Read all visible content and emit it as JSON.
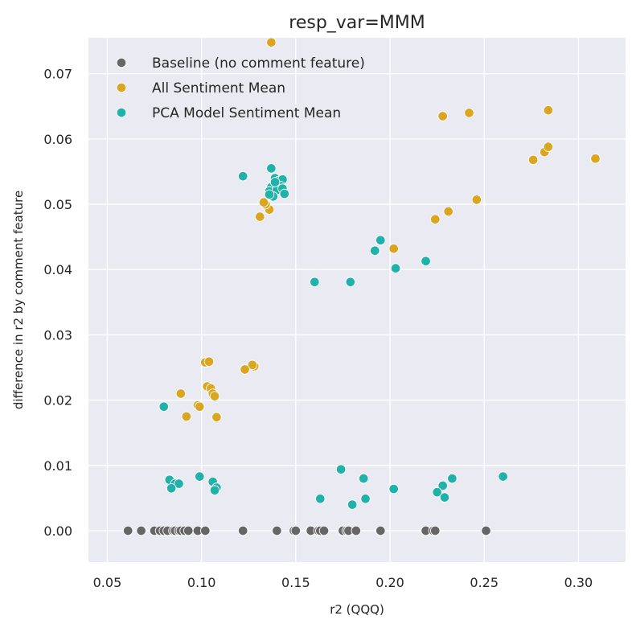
{
  "chart_data": {
    "type": "scatter",
    "title": "resp_var=MMM",
    "xlabel": "r2 (QQQ)",
    "ylabel": "difference in r2 by comment feature",
    "xlim": [
      0.04,
      0.325
    ],
    "ylim": [
      -0.0048,
      0.0755
    ],
    "xticks": [
      "0.05",
      "0.10",
      "0.15",
      "0.20",
      "0.25",
      "0.30"
    ],
    "yticks": [
      "0.00",
      "0.01",
      "0.02",
      "0.03",
      "0.04",
      "0.05",
      "0.06",
      "0.07"
    ],
    "grid": true,
    "legend_position": "top-left",
    "background_color": "#eaeaf2",
    "series": [
      {
        "name": "Baseline (no comment feature)",
        "color": "#666666",
        "points": [
          [
            0.061,
            0
          ],
          [
            0.068,
            0
          ],
          [
            0.075,
            0
          ],
          [
            0.078,
            0
          ],
          [
            0.08,
            0
          ],
          [
            0.082,
            0
          ],
          [
            0.085,
            0
          ],
          [
            0.086,
            0
          ],
          [
            0.088,
            0
          ],
          [
            0.089,
            0
          ],
          [
            0.091,
            0
          ],
          [
            0.093,
            0
          ],
          [
            0.098,
            0
          ],
          [
            0.102,
            0
          ],
          [
            0.122,
            0
          ],
          [
            0.14,
            0
          ],
          [
            0.149,
            0
          ],
          [
            0.15,
            0
          ],
          [
            0.158,
            0
          ],
          [
            0.162,
            0
          ],
          [
            0.163,
            0
          ],
          [
            0.165,
            0
          ],
          [
            0.175,
            0
          ],
          [
            0.177,
            0
          ],
          [
            0.178,
            0
          ],
          [
            0.182,
            0
          ],
          [
            0.195,
            0
          ],
          [
            0.219,
            0
          ],
          [
            0.223,
            0
          ],
          [
            0.224,
            0
          ],
          [
            0.251,
            0
          ]
        ]
      },
      {
        "name": "All Sentiment Mean",
        "color": "#daa520",
        "points": [
          [
            0.137,
            0.0748
          ],
          [
            0.228,
            0.0635
          ],
          [
            0.242,
            0.064
          ],
          [
            0.284,
            0.0644
          ],
          [
            0.276,
            0.0568
          ],
          [
            0.282,
            0.058
          ],
          [
            0.284,
            0.0588
          ],
          [
            0.309,
            0.057
          ],
          [
            0.246,
            0.0507
          ],
          [
            0.231,
            0.0489
          ],
          [
            0.224,
            0.0477
          ],
          [
            0.202,
            0.0432
          ],
          [
            0.131,
            0.0481
          ],
          [
            0.136,
            0.0492
          ],
          [
            0.134,
            0.05
          ],
          [
            0.133,
            0.0503
          ],
          [
            0.139,
            0.052
          ],
          [
            0.128,
            0.0252
          ],
          [
            0.127,
            0.0254
          ],
          [
            0.123,
            0.0247
          ],
          [
            0.102,
            0.0258
          ],
          [
            0.104,
            0.0259
          ],
          [
            0.103,
            0.0221
          ],
          [
            0.105,
            0.0218
          ],
          [
            0.106,
            0.021
          ],
          [
            0.107,
            0.0206
          ],
          [
            0.089,
            0.021
          ],
          [
            0.098,
            0.0192
          ],
          [
            0.099,
            0.019
          ],
          [
            0.092,
            0.0175
          ],
          [
            0.108,
            0.0174
          ]
        ]
      },
      {
        "name": "PCA Model Sentiment Mean",
        "color": "#20b2aa",
        "points": [
          [
            0.137,
            0.0555
          ],
          [
            0.122,
            0.0543
          ],
          [
            0.139,
            0.054
          ],
          [
            0.141,
            0.0536
          ],
          [
            0.143,
            0.0538
          ],
          [
            0.139,
            0.0532
          ],
          [
            0.142,
            0.0528
          ],
          [
            0.137,
            0.0526
          ],
          [
            0.136,
            0.052
          ],
          [
            0.14,
            0.0522
          ],
          [
            0.143,
            0.0524
          ],
          [
            0.138,
            0.0512
          ],
          [
            0.144,
            0.0516
          ],
          [
            0.136,
            0.0515
          ],
          [
            0.139,
            0.0534
          ],
          [
            0.195,
            0.0445
          ],
          [
            0.192,
            0.0429
          ],
          [
            0.219,
            0.0413
          ],
          [
            0.203,
            0.0402
          ],
          [
            0.16,
            0.0381
          ],
          [
            0.179,
            0.0381
          ],
          [
            0.08,
            0.019
          ],
          [
            0.083,
            0.0078
          ],
          [
            0.086,
            0.0072
          ],
          [
            0.088,
            0.0072
          ],
          [
            0.084,
            0.0065
          ],
          [
            0.099,
            0.0083
          ],
          [
            0.106,
            0.0075
          ],
          [
            0.108,
            0.0066
          ],
          [
            0.107,
            0.0062
          ],
          [
            0.174,
            0.0094
          ],
          [
            0.186,
            0.008
          ],
          [
            0.233,
            0.008
          ],
          [
            0.26,
            0.0083
          ],
          [
            0.228,
            0.0069
          ],
          [
            0.202,
            0.0064
          ],
          [
            0.225,
            0.0059
          ],
          [
            0.163,
            0.0049
          ],
          [
            0.187,
            0.0049
          ],
          [
            0.229,
            0.0051
          ],
          [
            0.18,
            0.004
          ]
        ]
      }
    ]
  }
}
